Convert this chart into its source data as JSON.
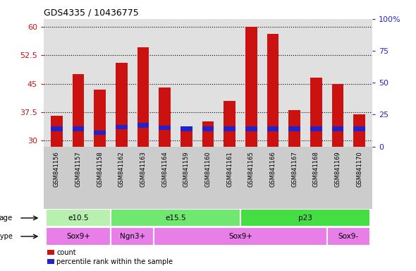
{
  "title": "GDS4335 / 10436775",
  "samples": [
    "GSM841156",
    "GSM841157",
    "GSM841158",
    "GSM841162",
    "GSM841163",
    "GSM841164",
    "GSM841159",
    "GSM841160",
    "GSM841161",
    "GSM841165",
    "GSM841166",
    "GSM841167",
    "GSM841168",
    "GSM841169",
    "GSM841170"
  ],
  "red_values": [
    36.5,
    47.5,
    43.5,
    50.5,
    54.5,
    44.0,
    32.5,
    35.0,
    40.5,
    60.0,
    58.0,
    38.0,
    46.5,
    45.0,
    37.0
  ],
  "blue_bottom": [
    32.5,
    32.5,
    31.5,
    33.0,
    33.5,
    32.8,
    32.5,
    32.5,
    32.5,
    32.5,
    32.5,
    32.5,
    32.5,
    32.5,
    32.5
  ],
  "blue_height": [
    1.2,
    1.2,
    1.2,
    1.2,
    1.2,
    1.2,
    1.2,
    1.2,
    1.2,
    1.2,
    1.2,
    1.2,
    1.2,
    1.2,
    1.2
  ],
  "ymin": 28.5,
  "ymax": 62,
  "yticks_left": [
    30,
    37.5,
    45,
    52.5,
    60
  ],
  "yticks_right": [
    0,
    25,
    50,
    75,
    100
  ],
  "age_groups": [
    {
      "label": "e10.5",
      "start": 0,
      "end": 3,
      "color": "#b8f0b0"
    },
    {
      "label": "e15.5",
      "start": 3,
      "end": 9,
      "color": "#70e870"
    },
    {
      "label": "p23",
      "start": 9,
      "end": 15,
      "color": "#44dd44"
    }
  ],
  "cell_groups": [
    {
      "label": "Sox9+",
      "start": 0,
      "end": 3,
      "color": "#e87ee8"
    },
    {
      "label": "Ngn3+",
      "start": 3,
      "end": 5,
      "color": "#e87ee8"
    },
    {
      "label": "Sox9+",
      "start": 5,
      "end": 13,
      "color": "#e87ee8"
    },
    {
      "label": "Sox9-",
      "start": 13,
      "end": 15,
      "color": "#e87ee8"
    }
  ],
  "bar_color": "#cc1111",
  "blue_color": "#2222cc",
  "tick_color_left": "#cc1111",
  "tick_color_right": "#2222cc",
  "plot_bg": "#e0e0e0",
  "xtick_bg": "#cccccc",
  "bar_width": 0.55
}
